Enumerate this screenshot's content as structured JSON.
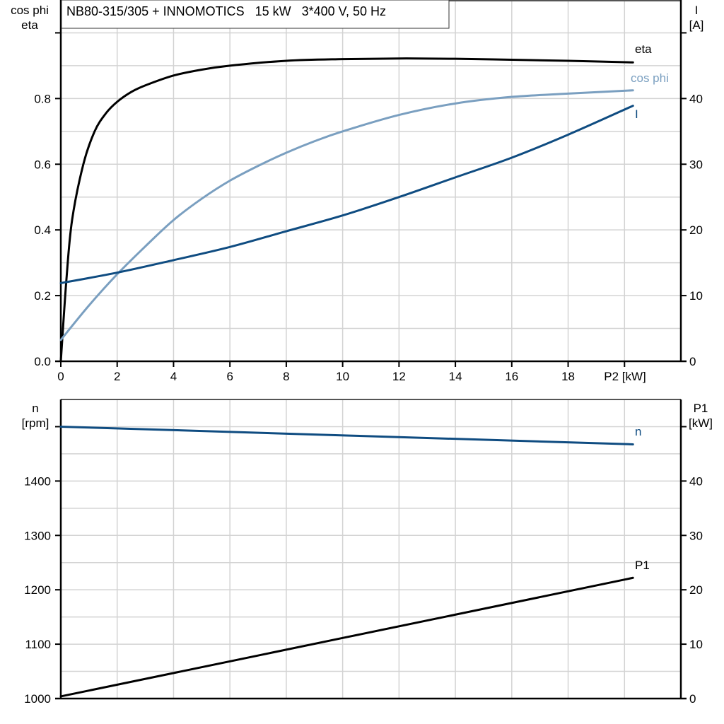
{
  "chart_data": [
    {
      "type": "line",
      "title": "NB80-315/305 + INNOMOTICS   15 kW   3*400 V, 50 Hz",
      "xlabel": "P2 [kW]",
      "xlim": [
        0,
        22
      ],
      "xticks": [
        "0",
        "2",
        "4",
        "6",
        "8",
        "10",
        "12",
        "14",
        "16",
        "18"
      ],
      "ylabel_left": [
        "cos phi",
        "eta"
      ],
      "ylim_left": [
        0,
        1.1
      ],
      "yticks_left": [
        "0.0",
        "0.2",
        "0.4",
        "0.6",
        "0.8"
      ],
      "ylabel_right": [
        "I",
        "[A]"
      ],
      "ylim_right": [
        0,
        55
      ],
      "yticks_right": [
        "0",
        "10",
        "20",
        "30",
        "40"
      ],
      "grid": true,
      "series": [
        {
          "name": "eta",
          "axis": "left",
          "color": "#000000",
          "x": [
            0,
            0.2,
            0.4,
            0.8,
            1.2,
            1.6,
            2,
            2.5,
            3,
            4,
            5,
            6,
            8,
            10,
            12,
            14,
            16,
            18,
            20.3
          ],
          "y": [
            0,
            0.25,
            0.43,
            0.6,
            0.7,
            0.755,
            0.79,
            0.82,
            0.84,
            0.87,
            0.888,
            0.9,
            0.915,
            0.92,
            0.922,
            0.921,
            0.918,
            0.915,
            0.91
          ]
        },
        {
          "name": "cos phi",
          "axis": "left",
          "color": "#7a9fc0",
          "x": [
            0,
            1,
            2,
            3,
            4,
            5,
            6,
            7,
            8,
            9,
            10,
            12,
            14,
            16,
            18,
            20.3
          ],
          "y": [
            0.065,
            0.17,
            0.265,
            0.35,
            0.43,
            0.495,
            0.55,
            0.595,
            0.635,
            0.67,
            0.7,
            0.75,
            0.785,
            0.805,
            0.815,
            0.825
          ]
        },
        {
          "name": "I",
          "axis": "right",
          "color": "#0f4c81",
          "x": [
            0,
            2,
            4,
            6,
            8,
            10,
            12,
            14,
            16,
            18,
            20.3
          ],
          "y": [
            11.9,
            13.5,
            15.4,
            17.4,
            19.8,
            22.2,
            25,
            28,
            31,
            34.5,
            38.9
          ]
        }
      ]
    },
    {
      "type": "line",
      "xlim": [
        0,
        22
      ],
      "ylabel_left": [
        "n",
        "[rpm]"
      ],
      "ylim_left": [
        1000,
        1550
      ],
      "yticks_left": [
        "1000",
        "1100",
        "1200",
        "1300",
        "1400"
      ],
      "ylabel_right": [
        "P1",
        "[kW]"
      ],
      "ylim_right": [
        0,
        55
      ],
      "yticks_right": [
        "0",
        "10",
        "20",
        "30",
        "40"
      ],
      "grid": true,
      "series": [
        {
          "name": "n",
          "axis": "left",
          "color": "#0f4c81",
          "x": [
            0,
            20.3
          ],
          "y": [
            1500,
            1467.5
          ]
        },
        {
          "name": "P1",
          "axis": "right",
          "color": "#000000",
          "x": [
            0,
            20.3
          ],
          "y": [
            0.4,
            22.2
          ]
        }
      ]
    }
  ]
}
